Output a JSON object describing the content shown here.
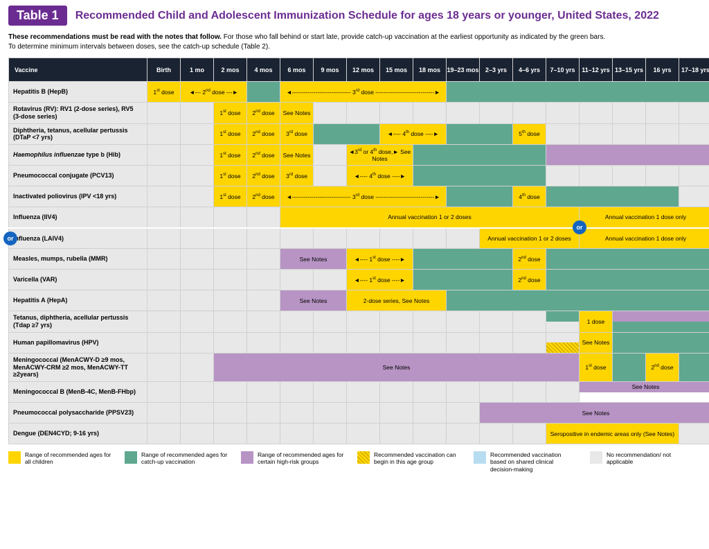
{
  "colors": {
    "yellow": "#ffd500",
    "green": "#5fa88f",
    "purple": "#b794c4",
    "grey": "#e8e8e8",
    "blue": "#b8dcf0",
    "header_bg": "#1a2332",
    "brand": "#6b2c91",
    "or_bg": "#1565c0"
  },
  "badge": "Table 1",
  "title": "Recommended Child and Adolescent Immunization Schedule for ages 18 years or younger, United States, 2022",
  "subtitle_bold": "These recommendations must be read with the notes that follow.",
  "subtitle_rest": " For those who fall behind or start late, provide catch-up vaccination at the earliest opportunity as indicated by the green bars.\nTo determine minimum intervals between doses, see the catch-up schedule (Table 2).",
  "ages": [
    "Birth",
    "1 mo",
    "2 mos",
    "4 mos",
    "6 mos",
    "9 mos",
    "12 mos",
    "15 mos",
    "18 mos",
    "19–23 mos",
    "2–3 yrs",
    "4–6 yrs",
    "7–10 yrs",
    "11–12 yrs",
    "13–15 yrs",
    "16 yrs",
    "17–18 yrs"
  ],
  "vaccine_header": "Vaccine",
  "or_label": "or",
  "rows": [
    {
      "name": "Hepatitis B (HepB)",
      "cells": [
        {
          "c": "yellow",
          "t": "1st dose"
        },
        {
          "c": "yellow",
          "t": "◄--- 2nd dose ---►",
          "span": 2
        },
        {
          "c": "green",
          "t": ""
        },
        {
          "c": "yellow",
          "t": "◄------------------------------ 3rd dose ------------------------------►",
          "span": 5
        },
        {
          "c": "green",
          "t": "",
          "span": 8
        }
      ]
    },
    {
      "name": "Rotavirus (RV): RV1 (2-dose series), RV5 (3-dose series)",
      "cells": [
        {},
        {},
        {
          "c": "yellow",
          "t": "1st dose"
        },
        {
          "c": "yellow",
          "t": "2nd dose"
        },
        {
          "c": "yellow",
          "t": "See Notes"
        },
        {},
        {},
        {},
        {},
        {},
        {},
        {},
        {},
        {},
        {},
        {},
        {}
      ]
    },
    {
      "name": "Diphtheria, tetanus, acellular pertussis (DTaP <7 yrs)",
      "cells": [
        {},
        {},
        {
          "c": "yellow",
          "t": "1st dose"
        },
        {
          "c": "yellow",
          "t": "2nd dose"
        },
        {
          "c": "yellow",
          "t": "3rd dose"
        },
        {
          "c": "green",
          "t": "",
          "span": 2
        },
        {
          "c": "yellow",
          "t": "◄---- 4th dose ----►",
          "span": 2
        },
        {
          "c": "green",
          "t": "",
          "span": 2
        },
        {
          "c": "yellow",
          "t": "5th dose"
        },
        {},
        {},
        {},
        {},
        {}
      ]
    },
    {
      "name": "Haemophilus influenzae type b (Hib)",
      "italic": true,
      "cells": [
        {},
        {},
        {
          "c": "yellow",
          "t": "1st dose"
        },
        {
          "c": "yellow",
          "t": "2nd dose"
        },
        {
          "c": "yellow",
          "t": "See Notes"
        },
        {},
        {
          "c": "yellow",
          "t": "◄3rd or 4th dose,► See Notes",
          "span": 2
        },
        {
          "c": "green",
          "t": "",
          "span": 4
        },
        {
          "c": "purple",
          "t": "",
          "span": 5
        }
      ]
    },
    {
      "name": "Pneumococcal conjugate (PCV13)",
      "cells": [
        {},
        {},
        {
          "c": "yellow",
          "t": "1st dose"
        },
        {
          "c": "yellow",
          "t": "2nd dose"
        },
        {
          "c": "yellow",
          "t": "3rd dose"
        },
        {},
        {
          "c": "yellow",
          "t": "◄---- 4th dose ----►",
          "span": 2
        },
        {
          "c": "green",
          "t": "",
          "span": 4
        },
        {},
        {},
        {},
        {},
        {}
      ]
    },
    {
      "name": "Inactivated poliovirus (IPV <18 yrs)",
      "cells": [
        {},
        {},
        {
          "c": "yellow",
          "t": "1st dose"
        },
        {
          "c": "yellow",
          "t": "2nd dose"
        },
        {
          "c": "yellow",
          "t": "◄------------------------------ 3rd dose ------------------------------►",
          "span": 5
        },
        {
          "c": "green",
          "t": "",
          "span": 2
        },
        {
          "c": "yellow",
          "t": "4th dose"
        },
        {
          "c": "green",
          "t": "",
          "span": 4
        },
        {}
      ]
    },
    {
      "name": "Influenza (IIV4)",
      "inf": true,
      "cells": [
        {},
        {},
        {},
        {},
        {
          "c": "yellow",
          "t": "Annual vaccination 1 or 2 doses",
          "span": 9
        },
        {
          "c": "yellow",
          "t": "Annual vaccination 1 dose only",
          "span": 4,
          "or_right": true
        }
      ]
    },
    {
      "name": "Influenza (LAIV4)",
      "dash": true,
      "cells": [
        {
          "or": true
        },
        {},
        {},
        {},
        {},
        {},
        {},
        {},
        {},
        {},
        {
          "c": "yellow",
          "t": "Annual vaccination 1 or 2 doses",
          "span": 3
        },
        {
          "c": "yellow",
          "t": "Annual vaccination 1 dose only",
          "span": 4
        }
      ]
    },
    {
      "name": "Measles, mumps, rubella (MMR)",
      "cells": [
        {},
        {},
        {},
        {},
        {
          "c": "purple",
          "t": "See Notes",
          "span": 2
        },
        {
          "c": "yellow",
          "t": "◄---- 1st dose ----►",
          "span": 2
        },
        {
          "c": "green",
          "t": "",
          "span": 3
        },
        {
          "c": "yellow",
          "t": "2nd dose"
        },
        {
          "c": "green",
          "t": "",
          "span": 5
        }
      ]
    },
    {
      "name": "Varicella (VAR)",
      "cells": [
        {},
        {},
        {},
        {},
        {},
        {},
        {
          "c": "yellow",
          "t": "◄---- 1st dose ----►",
          "span": 2
        },
        {
          "c": "green",
          "t": "",
          "span": 3
        },
        {
          "c": "yellow",
          "t": "2nd dose"
        },
        {
          "c": "green",
          "t": "",
          "span": 5
        }
      ]
    },
    {
      "name": "Hepatitis A (HepA)",
      "cells": [
        {},
        {},
        {},
        {},
        {
          "c": "purple",
          "t": "See Notes",
          "span": 2
        },
        {
          "c": "yellow",
          "t": "2-dose series, See Notes",
          "span": 3
        },
        {
          "c": "green",
          "t": "",
          "span": 8
        }
      ]
    },
    {
      "name": "Tetanus, diphtheria, acellular pertussis (Tdap ≥7 yrs)",
      "cells": [
        {},
        {},
        {},
        {},
        {},
        {},
        {},
        {},
        {},
        {},
        {},
        {},
        {
          "split": [
            {
              "c": "green"
            },
            {
              "c": "grey"
            }
          ]
        },
        {
          "c": "yellow",
          "t": "1 dose"
        },
        {
          "split": [
            {
              "c": "purple"
            },
            {
              "c": "green"
            }
          ],
          "span": 3
        }
      ]
    },
    {
      "name": "Human papillomavirus (HPV)",
      "cells": [
        {},
        {},
        {},
        {},
        {},
        {},
        {},
        {},
        {},
        {},
        {},
        {},
        {
          "split": [
            {
              "c": "grey"
            },
            {
              "c": "hatch"
            }
          ]
        },
        {
          "c": "yellow",
          "t": "See Notes"
        },
        {
          "c": "green",
          "t": "",
          "span": 3
        }
      ]
    },
    {
      "name": "Meningococcal (MenACWY-D ≥9 mos, MenACWY-CRM ≥2 mos,  MenACWY-TT ≥2years)",
      "cells": [
        {},
        {},
        {
          "c": "purple",
          "t": "See Notes",
          "span": 11
        },
        {
          "c": "yellow",
          "t": "1st dose"
        },
        {
          "c": "green"
        },
        {
          "c": "yellow",
          "t": "2nd dose"
        },
        {
          "c": "green"
        }
      ]
    },
    {
      "name": "Meningococcal B (MenB-4C, MenB-FHbp)",
      "cells": [
        {},
        {},
        {},
        {},
        {},
        {},
        {},
        {},
        {},
        {},
        {},
        {},
        {},
        {
          "c": "purple",
          "t": "See Notes",
          "span": 4,
          "blue_half": true
        }
      ]
    },
    {
      "name": "Pneumococcal polysaccharide (PPSV23)",
      "cells": [
        {},
        {},
        {},
        {},
        {},
        {},
        {},
        {},
        {},
        {},
        {
          "c": "purple",
          "t": "See Notes",
          "span": 7
        }
      ]
    },
    {
      "name": "Dengue (DEN4CYD; 9-16 yrs)",
      "cells": [
        {},
        {},
        {},
        {},
        {},
        {},
        {},
        {},
        {},
        {},
        {},
        {},
        {
          "c": "yellow",
          "t": "Seropositive in endemic areas only (See Notes)",
          "span": 4
        },
        {}
      ]
    }
  ],
  "legend": [
    {
      "c": "yellow",
      "t": "Range of recommended ages for all children"
    },
    {
      "c": "green",
      "t": "Range of recommended ages for catch-up vaccination"
    },
    {
      "c": "purple",
      "t": "Range of recommended ages for certain high-risk groups"
    },
    {
      "c": "hatch",
      "t": "Recommended vaccination can begin in this age group"
    },
    {
      "c": "blue",
      "t": "Recommended vaccination based on shared clinical decision-making"
    },
    {
      "c": "grey",
      "t": "No recommendation/ not applicable"
    }
  ]
}
